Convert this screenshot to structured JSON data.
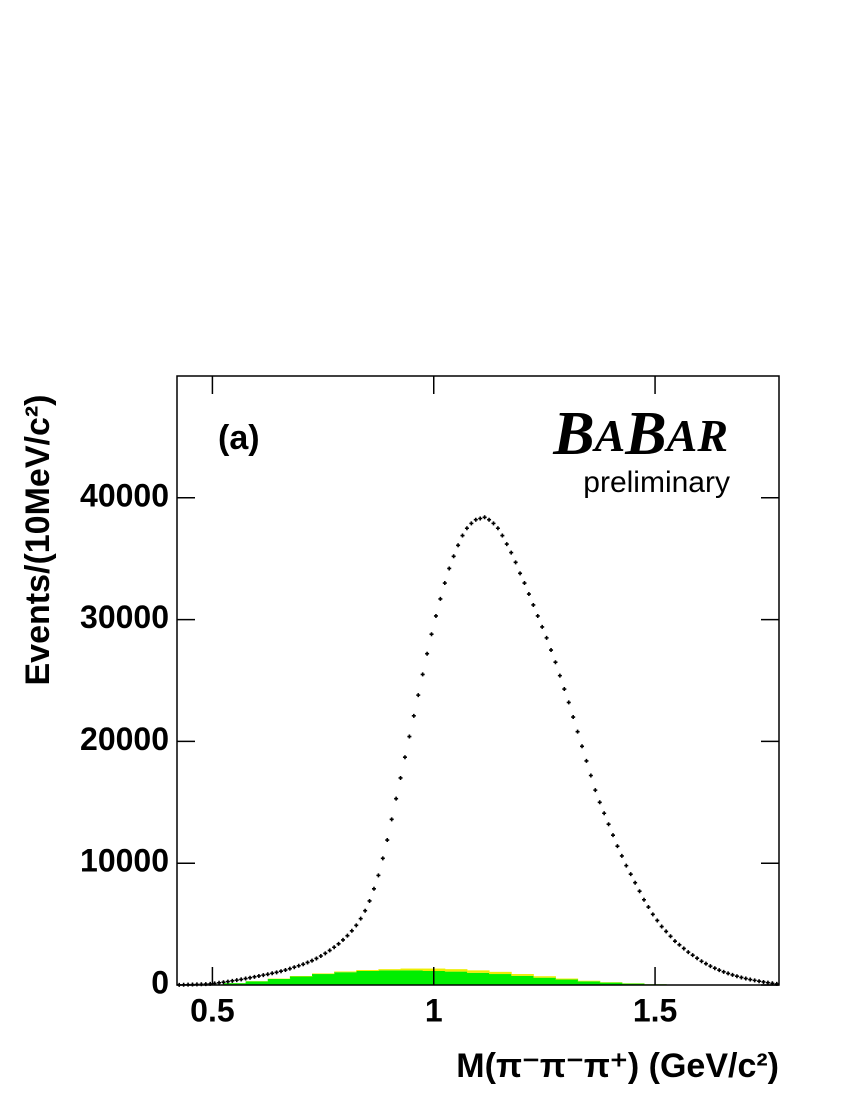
{
  "chart_data": {
    "type": "scatter",
    "xlabel": "M(π⁻π⁻π⁺) (GeV/c²)",
    "ylabel": "Events/(10MeV/c²)",
    "label": "(a)",
    "logo": "BABAR",
    "logo_subtitle": "preliminary",
    "xlim": [
      0.42,
      1.78
    ],
    "ylim": [
      0,
      50000
    ],
    "xticks": [
      0.5,
      1,
      1.5
    ],
    "yticks": [
      0,
      10000,
      20000,
      30000,
      40000
    ],
    "series": [
      {
        "kind": "points",
        "color": "#000000",
        "x": [
          0.425,
          0.435,
          0.445,
          0.455,
          0.465,
          0.475,
          0.485,
          0.495,
          0.505,
          0.515,
          0.525,
          0.535,
          0.545,
          0.555,
          0.565,
          0.575,
          0.585,
          0.595,
          0.605,
          0.615,
          0.625,
          0.635,
          0.645,
          0.655,
          0.665,
          0.675,
          0.685,
          0.695,
          0.705,
          0.715,
          0.725,
          0.735,
          0.745,
          0.755,
          0.765,
          0.775,
          0.785,
          0.795,
          0.805,
          0.815,
          0.825,
          0.835,
          0.845,
          0.855,
          0.865,
          0.875,
          0.885,
          0.895,
          0.905,
          0.915,
          0.925,
          0.935,
          0.945,
          0.955,
          0.965,
          0.975,
          0.985,
          0.995,
          1.005,
          1.015,
          1.025,
          1.035,
          1.045,
          1.055,
          1.065,
          1.075,
          1.085,
          1.095,
          1.105,
          1.115,
          1.125,
          1.135,
          1.145,
          1.155,
          1.165,
          1.175,
          1.185,
          1.195,
          1.205,
          1.215,
          1.225,
          1.235,
          1.245,
          1.255,
          1.265,
          1.275,
          1.285,
          1.295,
          1.305,
          1.315,
          1.325,
          1.335,
          1.345,
          1.355,
          1.365,
          1.375,
          1.385,
          1.395,
          1.405,
          1.415,
          1.425,
          1.435,
          1.445,
          1.455,
          1.465,
          1.475,
          1.485,
          1.495,
          1.505,
          1.515,
          1.525,
          1.535,
          1.545,
          1.555,
          1.565,
          1.575,
          1.585,
          1.595,
          1.605,
          1.615,
          1.625,
          1.635,
          1.645,
          1.655,
          1.665,
          1.675,
          1.685,
          1.695,
          1.705,
          1.715,
          1.725,
          1.735,
          1.745,
          1.755,
          1.765,
          1.775
        ],
        "values": [
          10,
          20,
          30,
          40,
          50,
          60,
          75,
          90,
          130,
          180,
          230,
          280,
          340,
          400,
          460,
          530,
          600,
          670,
          740,
          810,
          880,
          960,
          1040,
          1130,
          1230,
          1340,
          1460,
          1580,
          1700,
          1850,
          2000,
          2180,
          2380,
          2600,
          2840,
          3100,
          3380,
          3700,
          4050,
          4450,
          4900,
          5450,
          6100,
          6900,
          7900,
          9000,
          10400,
          11900,
          13600,
          15300,
          17000,
          18700,
          20400,
          22100,
          23800,
          25500,
          27200,
          28800,
          30300,
          31700,
          33000,
          34200,
          35200,
          36100,
          36900,
          37500,
          37900,
          38200,
          38300,
          38400,
          38200,
          37900,
          37500,
          36900,
          36200,
          35500,
          34700,
          33800,
          33000,
          32100,
          31200,
          30300,
          29400,
          28500,
          27500,
          26500,
          25400,
          24300,
          23200,
          22000,
          20800,
          19600,
          18400,
          17200,
          16000,
          15000,
          14100,
          13200,
          12300,
          11400,
          10600,
          9800,
          9100,
          8400,
          7700,
          7000,
          6400,
          5800,
          5300,
          4800,
          4400,
          4000,
          3600,
          3300,
          3000,
          2700,
          2450,
          2200,
          1950,
          1750,
          1550,
          1380,
          1220,
          1080,
          950,
          830,
          720,
          620,
          530,
          450,
          380,
          310,
          250,
          190,
          140,
          90
        ]
      },
      {
        "kind": "area",
        "color": "#00ee00",
        "x": [
          0.45,
          0.5,
          0.55,
          0.6,
          0.65,
          0.7,
          0.75,
          0.8,
          0.85,
          0.9,
          0.95,
          1.0,
          1.05,
          1.1,
          1.15,
          1.2,
          1.25,
          1.3,
          1.35,
          1.4,
          1.45,
          1.5,
          1.55,
          1.6,
          1.65,
          1.7,
          1.75
        ],
        "values": [
          0,
          50,
          150,
          300,
          500,
          700,
          900,
          1050,
          1150,
          1200,
          1200,
          1150,
          1100,
          1000,
          900,
          750,
          600,
          450,
          300,
          200,
          120,
          60,
          30,
          10,
          0,
          0,
          0
        ]
      },
      {
        "kind": "area",
        "color": "#eeee00",
        "x": [
          0.45,
          0.5,
          0.55,
          0.6,
          0.65,
          0.7,
          0.75,
          0.8,
          0.85,
          0.9,
          0.95,
          1.0,
          1.05,
          1.1,
          1.15,
          1.2,
          1.25,
          1.3,
          1.35,
          1.4,
          1.45,
          1.5,
          1.55,
          1.6,
          1.65,
          1.7,
          1.75
        ],
        "values": [
          0,
          0,
          10,
          20,
          30,
          40,
          50,
          60,
          80,
          100,
          150,
          200,
          200,
          200,
          180,
          150,
          120,
          80,
          50,
          30,
          20,
          10,
          5,
          0,
          0,
          0,
          0
        ]
      }
    ]
  }
}
